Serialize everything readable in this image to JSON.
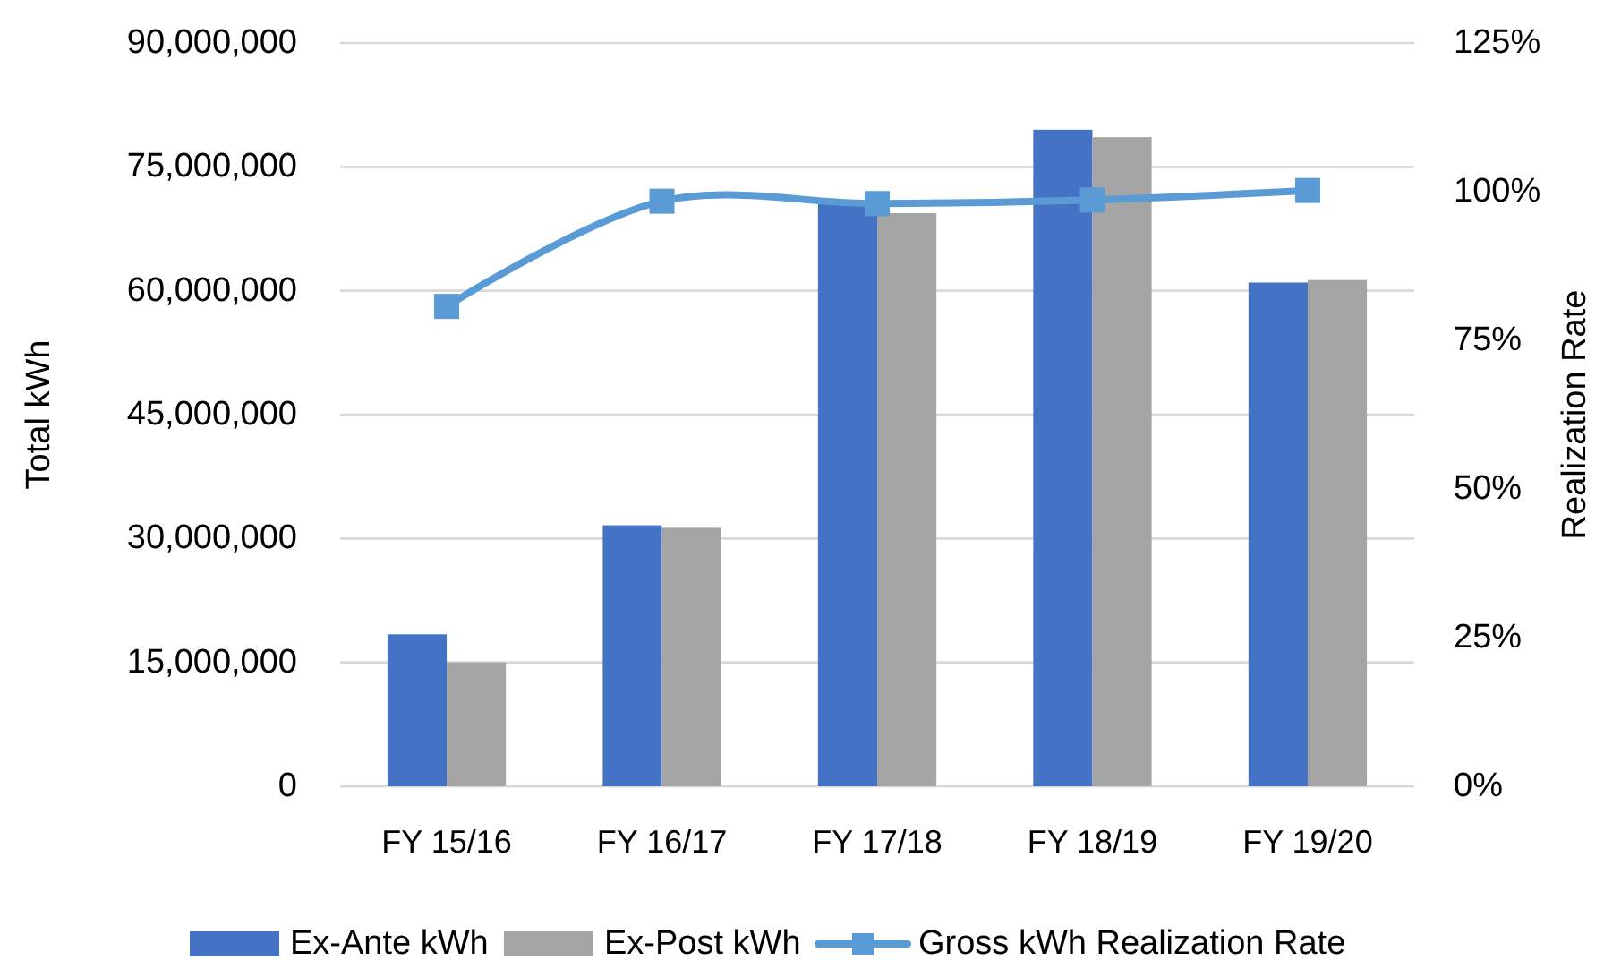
{
  "chart_data": {
    "type": "bar",
    "categories": [
      "FY 15/16",
      "FY 16/17",
      "FY 17/18",
      "FY 18/19",
      "FY 19/20"
    ],
    "ylabel": "Total kWh",
    "y2label": "Realization Rate",
    "ylim": [
      0,
      90000000
    ],
    "yticks": [
      {
        "value": 0,
        "label": "0"
      },
      {
        "value": 15000000,
        "label": "15,000,000"
      },
      {
        "value": 30000000,
        "label": "30,000,000"
      },
      {
        "value": 45000000,
        "label": "45,000,000"
      },
      {
        "value": 60000000,
        "label": "60,000,000"
      },
      {
        "value": 75000000,
        "label": "75,000,000"
      },
      {
        "value": 90000000,
        "label": "90,000,000"
      }
    ],
    "y2lim": [
      0,
      125
    ],
    "y2ticks": [
      {
        "value": 0,
        "label": "0%"
      },
      {
        "value": 25,
        "label": "25%"
      },
      {
        "value": 50,
        "label": "50%"
      },
      {
        "value": 75,
        "label": "75%"
      },
      {
        "value": 100,
        "label": "100%"
      },
      {
        "value": 125,
        "label": "125%"
      }
    ],
    "grid": "y",
    "legend": "bottom",
    "series": [
      {
        "name": "Ex-Ante kWh",
        "color": "#4472c4",
        "values": [
          18400000,
          31600000,
          70500000,
          79500000,
          61000000
        ]
      },
      {
        "name": "Ex-Post kWh",
        "color": "#a5a5a5",
        "values": [
          15000000,
          31300000,
          69400000,
          78600000,
          61300000
        ]
      },
      {
        "name": "Gross kWh Realization Rate",
        "type": "line",
        "axis": "y2",
        "color": "#5b9bd5",
        "marker": "square",
        "values": [
          80.7,
          98.4,
          98.0,
          98.6,
          100.2
        ]
      }
    ]
  }
}
